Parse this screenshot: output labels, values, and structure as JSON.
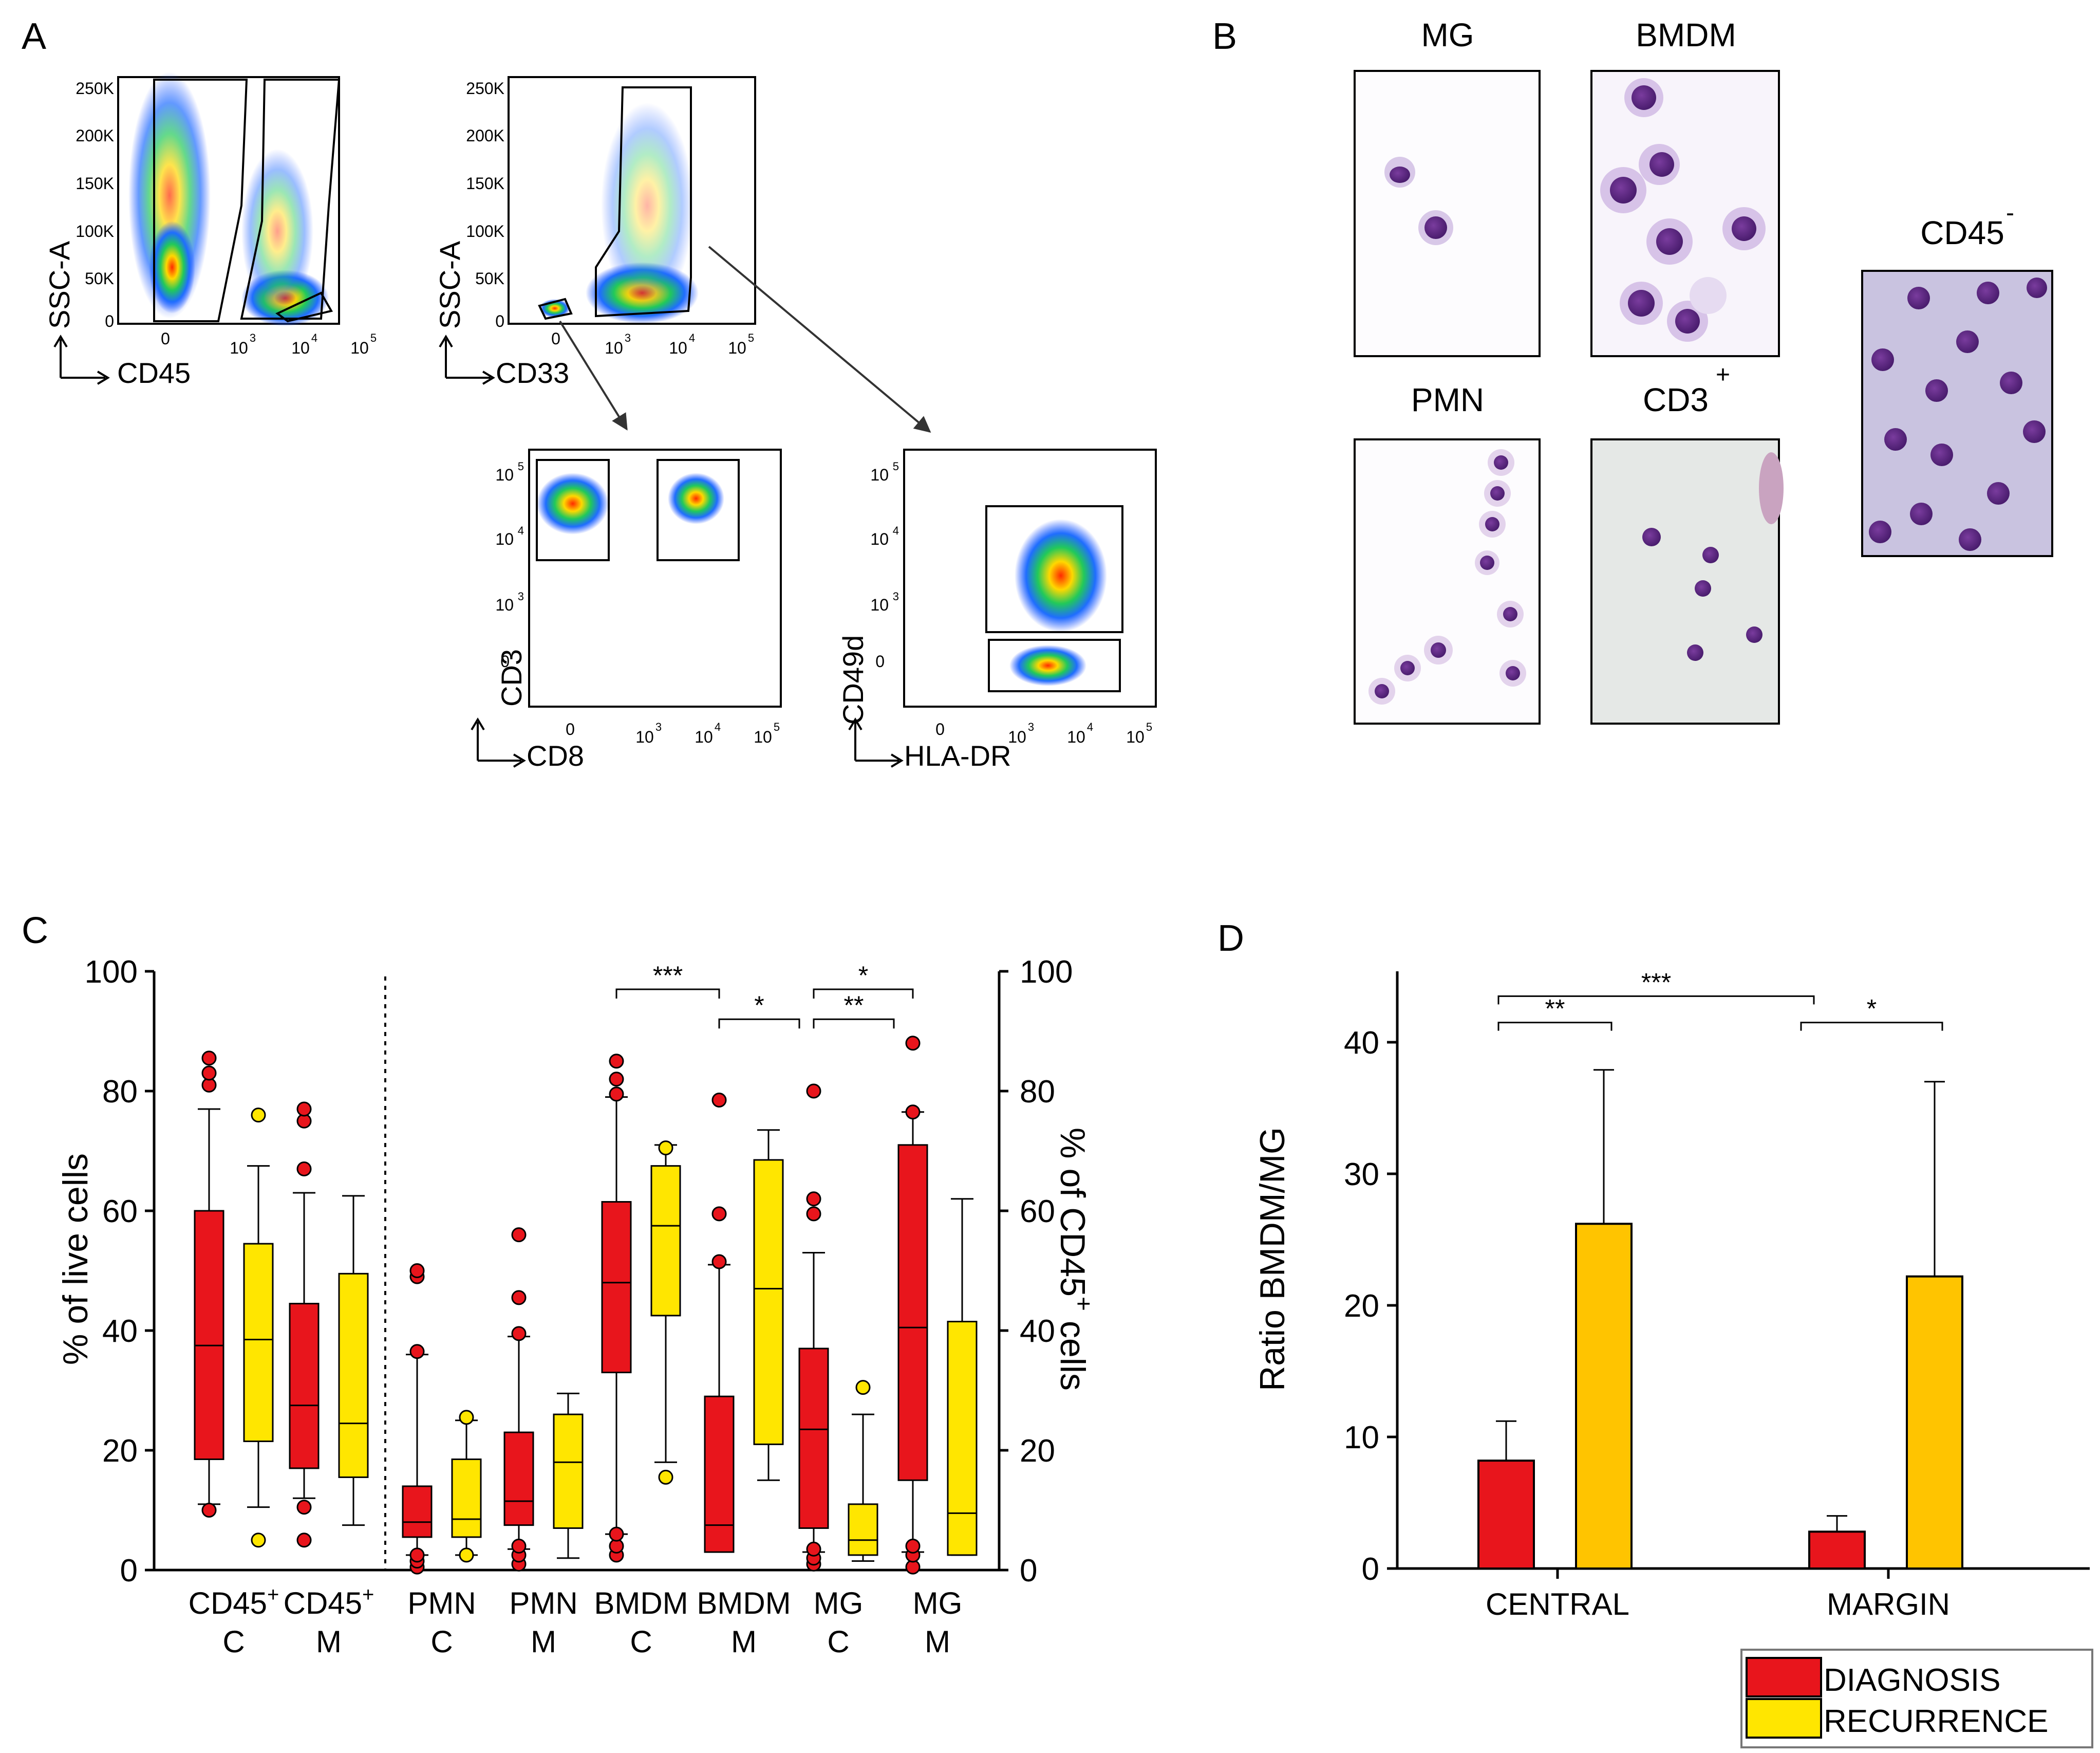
{
  "colors": {
    "diagnosis": "#e8151c",
    "recurrence_c": "#ffe600",
    "recurrence_d": "#ffc400",
    "line": "#000000"
  },
  "panel_a": {
    "label": "A",
    "plot1": {
      "ylabel": "SSC-A",
      "xlabel": "CD45",
      "yticks": [
        "250K",
        "200K",
        "150K",
        "100K",
        "50K",
        "0"
      ],
      "xticks": [
        "0",
        "10",
        "10",
        "10"
      ],
      "xexp": [
        "3",
        "4",
        "5"
      ]
    },
    "plot2": {
      "ylabel": "SSC-A",
      "xlabel": "CD33",
      "yticks": [
        "250K",
        "200K",
        "150K",
        "100K",
        "50K",
        "0"
      ],
      "xticks": [
        "0",
        "10",
        "10",
        "10"
      ],
      "xexp": [
        "3",
        "4",
        "5"
      ]
    },
    "plot3": {
      "ylabel": "CD3",
      "xlabel": "CD8",
      "yticks": [
        "10",
        "10",
        "10",
        "0"
      ],
      "yexp": [
        "5",
        "4",
        "3"
      ],
      "xticks": [
        "0",
        "10",
        "10",
        "10"
      ],
      "xexp": [
        "3",
        "4",
        "5"
      ]
    },
    "plot4": {
      "ylabel": "CD49d",
      "xlabel": "HLA-DR",
      "yticks": [
        "10",
        "10",
        "10",
        "0"
      ],
      "yexp": [
        "5",
        "4",
        "3"
      ],
      "xticks": [
        "0",
        "10",
        "10",
        "10"
      ],
      "xexp": [
        "3",
        "4",
        "5"
      ]
    }
  },
  "panel_b": {
    "label": "B",
    "images": [
      {
        "title": "MG",
        "sup": ""
      },
      {
        "title": "BMDM",
        "sup": ""
      },
      {
        "title": "PMN",
        "sup": ""
      },
      {
        "title": "CD3",
        "sup": "+"
      },
      {
        "title": "CD45",
        "sup": "-"
      }
    ]
  },
  "chart_data": [
    {
      "panel": "C",
      "type": "box",
      "ylabel_left": "% of live cells",
      "ylabel_right": "% of CD45",
      "ylabel_right_sup": "+",
      "ylabel_right_tail": " cells",
      "ylim": [
        0,
        100
      ],
      "yticks": [
        "0",
        "20",
        "40",
        "60",
        "80",
        "100"
      ],
      "categories": [
        {
          "line1": "CD45",
          "sup": "+",
          "line2": "C"
        },
        {
          "line1": "CD45",
          "sup": "+",
          "line2": "M"
        },
        {
          "line1": "PMN",
          "sup": "",
          "line2": "C"
        },
        {
          "line1": "PMN",
          "sup": "",
          "line2": "M"
        },
        {
          "line1": "BMDM",
          "sup": "",
          "line2": "C"
        },
        {
          "line1": "BMDM",
          "sup": "",
          "line2": "M"
        },
        {
          "line1": "MG",
          "sup": "",
          "line2": "C"
        },
        {
          "line1": "MG",
          "sup": "",
          "line2": "M"
        }
      ],
      "boxes": [
        {
          "group": 0,
          "series": "diagnosis",
          "whislo": 11,
          "q1": 18.5,
          "med": 37.5,
          "q3": 60,
          "whishi": 77,
          "outliers": [
            10,
            81,
            83,
            85.5
          ]
        },
        {
          "group": 0,
          "series": "recurrence",
          "whislo": 10.5,
          "q1": 21.5,
          "med": 38.5,
          "q3": 54.5,
          "whishi": 67.5,
          "outliers": [
            5,
            76
          ]
        },
        {
          "group": 1,
          "series": "diagnosis",
          "whislo": 12,
          "q1": 17,
          "med": 27.5,
          "q3": 44.5,
          "whishi": 63,
          "outliers": [
            5,
            10.5,
            67,
            75,
            77
          ]
        },
        {
          "group": 1,
          "series": "recurrence",
          "whislo": 7.5,
          "q1": 15.5,
          "med": 24.5,
          "q3": 49.5,
          "whishi": 62.5,
          "outliers": []
        },
        {
          "group": 2,
          "series": "diagnosis",
          "whislo": 2.5,
          "q1": 5.5,
          "med": 8,
          "q3": 14,
          "whishi": 36,
          "outliers": [
            0.5,
            1.5,
            2.5,
            36.5,
            49,
            50
          ]
        },
        {
          "group": 2,
          "series": "recurrence",
          "whislo": 2.5,
          "q1": 5.5,
          "med": 8.5,
          "q3": 18.5,
          "whishi": 25,
          "outliers": [
            2.5,
            25.5
          ]
        },
        {
          "group": 3,
          "series": "diagnosis",
          "whislo": 3.5,
          "q1": 7.5,
          "med": 11.5,
          "q3": 23,
          "whishi": 39,
          "outliers": [
            1,
            2.5,
            4,
            39.5,
            45.5,
            56
          ]
        },
        {
          "group": 3,
          "series": "recurrence",
          "whislo": 2,
          "q1": 7,
          "med": 18,
          "q3": 26,
          "whishi": 29.5,
          "outliers": []
        },
        {
          "group": 4,
          "series": "diagnosis",
          "whislo": 6,
          "q1": 33,
          "med": 48,
          "q3": 61.5,
          "whishi": 79,
          "outliers": [
            2.5,
            4,
            6,
            79.5,
            82,
            85
          ]
        },
        {
          "group": 4,
          "series": "recurrence",
          "whislo": 18,
          "q1": 42.5,
          "med": 57.5,
          "q3": 67.5,
          "whishi": 71,
          "outliers": [
            15.5,
            70.5
          ]
        },
        {
          "group": 5,
          "series": "diagnosis",
          "whislo": 3,
          "q1": 3,
          "med": 7.5,
          "q3": 29,
          "whishi": 51,
          "outliers": [
            51.5,
            59.5,
            78.5
          ]
        },
        {
          "group": 5,
          "series": "recurrence",
          "whislo": 15,
          "q1": 21,
          "med": 47,
          "q3": 68.5,
          "whishi": 73.5,
          "outliers": []
        },
        {
          "group": 6,
          "series": "diagnosis",
          "whislo": 3,
          "q1": 7,
          "med": 23.5,
          "q3": 37,
          "whishi": 53,
          "outliers": [
            1,
            2,
            3.5,
            59.5,
            62,
            80
          ]
        },
        {
          "group": 6,
          "series": "recurrence",
          "whislo": 1.5,
          "q1": 2.5,
          "med": 5,
          "q3": 11,
          "whishi": 26,
          "outliers": [
            30.5
          ]
        },
        {
          "group": 7,
          "series": "diagnosis",
          "whislo": 3,
          "q1": 15,
          "med": 40.5,
          "q3": 71,
          "whishi": 76.5,
          "outliers": [
            0.5,
            2.5,
            4,
            76.5,
            88
          ]
        },
        {
          "group": 7,
          "series": "recurrence",
          "whislo": 2.5,
          "q1": 2.5,
          "med": 9.5,
          "q3": 41.5,
          "whishi": 62,
          "outliers": []
        }
      ],
      "significance": [
        {
          "label": "***",
          "from_group": 4,
          "to_group": 5,
          "y": 97
        },
        {
          "label": "*",
          "from_group": 5,
          "to_group": 5,
          "y": 92
        },
        {
          "label": "*",
          "from_group": 6,
          "to_group": 7,
          "y": 97
        },
        {
          "label": "**",
          "from_group": 6,
          "to_group": 6,
          "y": 92
        }
      ]
    },
    {
      "panel": "D",
      "type": "bar",
      "ylabel": "Ratio BMDM/MG",
      "ylim": [
        0,
        45
      ],
      "yticks": [
        "0",
        "10",
        "20",
        "30",
        "40"
      ],
      "categories": [
        "CENTRAL",
        "MARGIN"
      ],
      "series": [
        {
          "name": "DIAGNOSIS",
          "values": [
            8.2,
            2.8
          ],
          "errors": [
            3.0,
            1.2
          ]
        },
        {
          "name": "RECURRENCE",
          "values": [
            26.2,
            22.2
          ],
          "errors": [
            11.7,
            14.8
          ]
        }
      ],
      "significance": [
        {
          "label": "***",
          "y": 43.5
        },
        {
          "label": "**",
          "y": 41.5
        },
        {
          "label": "*",
          "y": 41.5
        }
      ]
    }
  ],
  "panel_c": {
    "label": "C"
  },
  "panel_d": {
    "label": "D"
  }
}
